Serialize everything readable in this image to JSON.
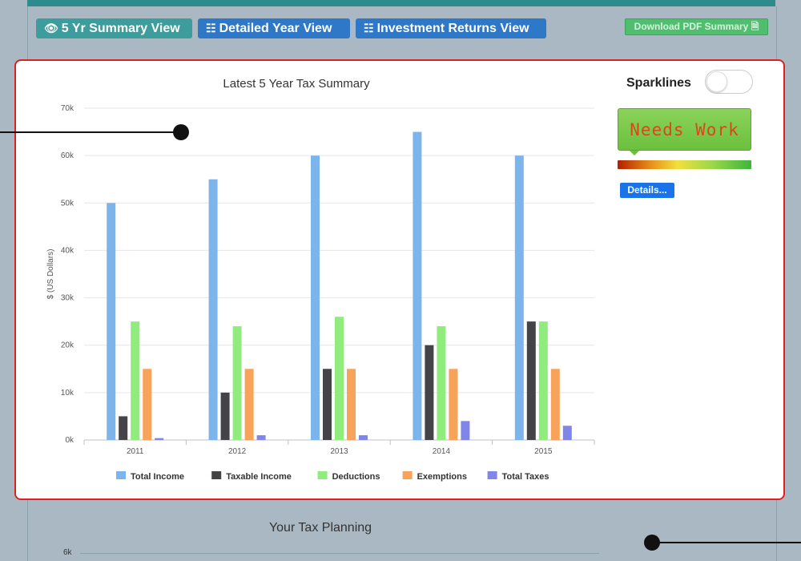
{
  "toolbar": {
    "summary_view": "5 Yr Summary View",
    "detailed_view": "Detailed Year View",
    "investment_view": "Investment Returns View",
    "download_pdf": "Download PDF Summary"
  },
  "sparklines": {
    "label": "Sparklines",
    "enabled": false
  },
  "status": {
    "label": "Needs Work",
    "details_label": "Details..."
  },
  "planning": {
    "title": "Your Tax Planning",
    "first_tick": "6k"
  },
  "colors": {
    "total_income": "#7cb5ec",
    "taxable_income": "#434348",
    "deductions": "#90ed7d",
    "exemptions": "#f7a35c",
    "total_taxes": "#8085e9"
  },
  "chart_data": {
    "type": "bar",
    "title": "Latest 5 Year Tax Summary",
    "ylabel": "$ (US Dollars)",
    "xlabel": "",
    "categories": [
      "2011",
      "2012",
      "2013",
      "2014",
      "2015"
    ],
    "ylim": [
      0,
      70000
    ],
    "yticks": [
      0,
      10000,
      20000,
      30000,
      40000,
      50000,
      60000,
      70000
    ],
    "ytick_labels": [
      "0k",
      "10k",
      "20k",
      "30k",
      "40k",
      "50k",
      "60k",
      "70k"
    ],
    "grid": true,
    "legend": "bottom",
    "series": [
      {
        "name": "Total Income",
        "color": "#7cb5ec",
        "values": [
          50000,
          55000,
          60000,
          65000,
          60000
        ]
      },
      {
        "name": "Taxable Income",
        "color": "#434348",
        "values": [
          5000,
          10000,
          15000,
          20000,
          25000
        ]
      },
      {
        "name": "Deductions",
        "color": "#90ed7d",
        "values": [
          25000,
          24000,
          26000,
          24000,
          25000
        ]
      },
      {
        "name": "Exemptions",
        "color": "#f7a35c",
        "values": [
          15000,
          15000,
          15000,
          15000,
          15000
        ]
      },
      {
        "name": "Total Taxes",
        "color": "#8085e9",
        "values": [
          400,
          1000,
          1000,
          4000,
          3000
        ]
      }
    ]
  }
}
